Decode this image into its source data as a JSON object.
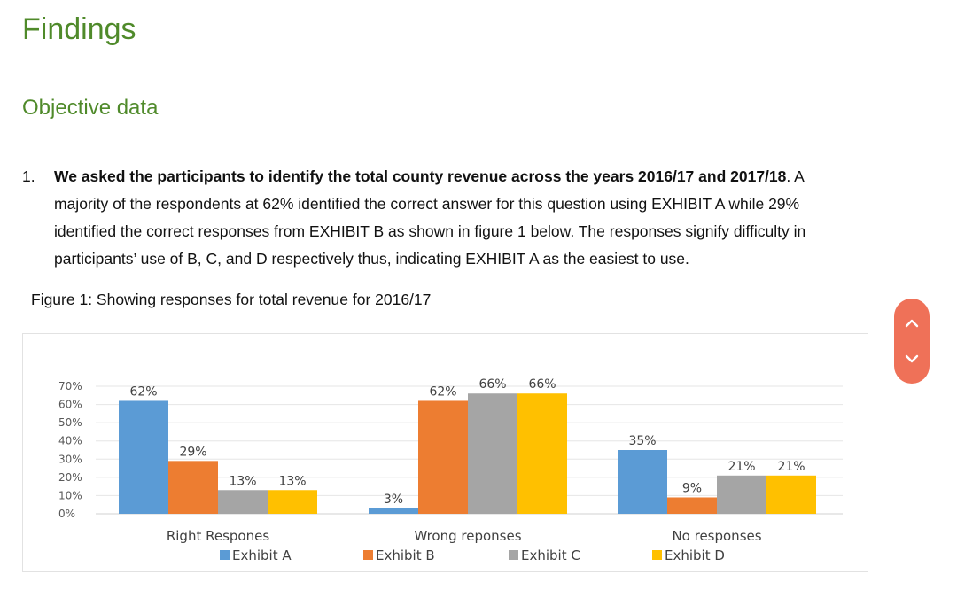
{
  "heading": "Findings",
  "subheading": "Objective data",
  "paragraph": {
    "number": "1.",
    "bold_text": "We asked the participants to identify the total county revenue across the years 2016/17 and 2017/18",
    "rest_text": ". A majority of the respondents at 62% identified the correct answer for this question using EXHIBIT A while 29% identified the correct responses from EXHIBIT B as shown in figure 1 below.  The responses signify difficulty in participants’ use of B, C, and D respectively thus, indicating EXHIBIT A as the easiest to use."
  },
  "figure_caption": "Figure 1: Showing responses for total revenue for 2016/17",
  "colors": {
    "heading": "#4f8a2a",
    "exhibit_a": "#5b9bd5",
    "exhibit_b": "#ed7d31",
    "exhibit_c": "#a5a5a5",
    "exhibit_d": "#ffc000",
    "nav_pill": "#ef7158"
  },
  "nav": {
    "up_icon": "chevron-up-icon",
    "down_icon": "chevron-down-icon"
  },
  "chart_data": {
    "type": "bar",
    "title": "",
    "categories": [
      "Right Respones",
      "Wrong reponses",
      "No responses"
    ],
    "series": [
      {
        "name": "Exhibit A",
        "values": [
          62,
          3,
          35
        ],
        "labels": [
          "62%",
          "3%",
          "35%"
        ]
      },
      {
        "name": "Exhibit B",
        "values": [
          29,
          62,
          9
        ],
        "labels": [
          "29%",
          "62%",
          "9%"
        ]
      },
      {
        "name": "Exhibit C",
        "values": [
          13,
          66,
          21
        ],
        "labels": [
          "13%",
          "66%",
          "21%"
        ]
      },
      {
        "name": "Exhibit D",
        "values": [
          13,
          66,
          21
        ],
        "labels": [
          "13%",
          "66%",
          "21%"
        ]
      }
    ],
    "y_ticks": [
      "0%",
      "10%",
      "20%",
      "30%",
      "40%",
      "50%",
      "60%",
      "70%"
    ],
    "ylim": [
      0,
      70
    ],
    "xlabel": "",
    "ylabel": "",
    "grid": true,
    "legend_position": "bottom"
  }
}
